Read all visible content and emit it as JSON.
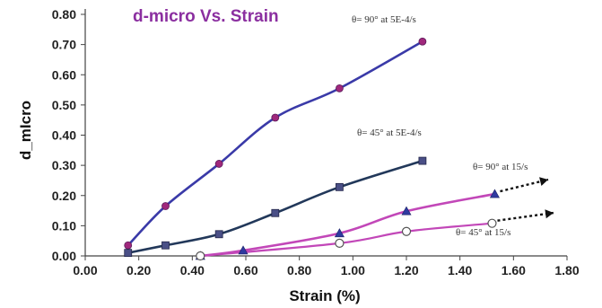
{
  "colors": {
    "title": "#8b2fa0",
    "navy_line": "#3a3aa8",
    "dark_line": "#22385a",
    "pink_line": "#c247b8",
    "circle_fill": "#a0287c",
    "square_fill": "#4a4f86",
    "triangle_fill": "#2f3aa0",
    "open_circle_stroke": "#555555",
    "arrow": "#111111",
    "axis": "#444444"
  },
  "chart_data": {
    "type": "line",
    "title": "d-micro Vs. Strain",
    "xlabel": "Strain (%)",
    "ylabel": "d_mIcro",
    "xlim": [
      0.0,
      1.8
    ],
    "ylim": [
      0.0,
      0.8
    ],
    "xticks": [
      "0.00",
      "0.20",
      "0.40",
      "0.60",
      "0.80",
      "1.00",
      "1.20",
      "1.40",
      "1.60",
      "1.80"
    ],
    "yticks": [
      "0.00",
      "0.10",
      "0.20",
      "0.30",
      "0.40",
      "0.50",
      "0.60",
      "0.70",
      "0.80"
    ],
    "grid": false,
    "series": [
      {
        "name": "θ= 90° at 5E-4/s",
        "marker": "circle",
        "x": [
          0.16,
          0.3,
          0.5,
          0.71,
          0.95,
          1.26
        ],
        "y": [
          0.035,
          0.165,
          0.305,
          0.458,
          0.555,
          0.71
        ]
      },
      {
        "name": "θ= 45° at 5E-4/s",
        "marker": "square",
        "x": [
          0.16,
          0.3,
          0.5,
          0.71,
          0.95,
          1.26
        ],
        "y": [
          0.01,
          0.035,
          0.072,
          0.142,
          0.228,
          0.315
        ]
      },
      {
        "name": "θ= 90° at 15/s",
        "marker": "triangle",
        "x": [
          0.43,
          0.59,
          0.95,
          1.2,
          1.53
        ],
        "y": [
          0.0,
          0.018,
          0.075,
          0.148,
          0.205
        ]
      },
      {
        "name": "θ= 45° at 15/s",
        "marker": "open-circle",
        "x": [
          0.43,
          0.95,
          1.2,
          1.52
        ],
        "y": [
          0.0,
          0.042,
          0.081,
          0.108
        ]
      }
    ],
    "annotations": [
      {
        "text": "θ= 90° at 5E-4/s"
      },
      {
        "text": "θ= 45° at 5E-4/s"
      },
      {
        "text": "θ= 90° at 15/s"
      },
      {
        "text": "θ= 45° at 15/s"
      }
    ]
  }
}
